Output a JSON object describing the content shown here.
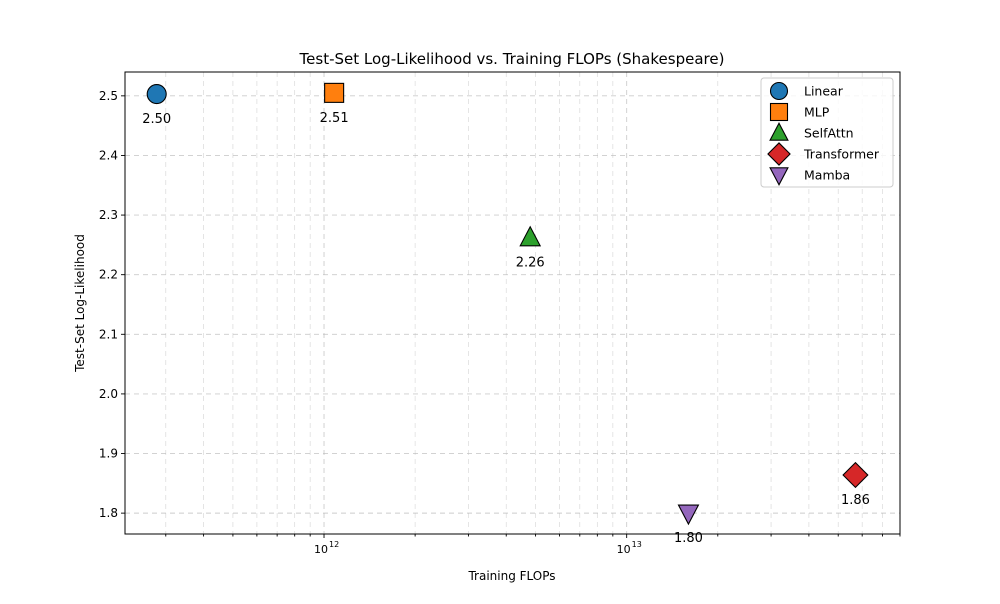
{
  "chart_data": {
    "type": "scatter",
    "title": "Test-Set Log-Likelihood vs. Training FLOPs (Shakespeare)",
    "xlabel": "Training FLOPs",
    "ylabel": "Test-Set Log-Likelihood",
    "x_scale": "log",
    "xlim": [
      220000000000.0,
      80000000000000.0
    ],
    "ylim": [
      1.765,
      2.54
    ],
    "x_major_ticks": [
      {
        "value": 1000000000000.0,
        "base": "10",
        "exp": "12"
      },
      {
        "value": 10000000000000.0,
        "base": "10",
        "exp": "13"
      }
    ],
    "y_ticks": [
      1.8,
      1.9,
      2.0,
      2.1,
      2.2,
      2.3,
      2.4,
      2.5
    ],
    "y_tick_labels": [
      "1.8",
      "1.9",
      "2.0",
      "2.1",
      "2.2",
      "2.3",
      "2.4",
      "2.5"
    ],
    "grid": true,
    "legend_position": "top-right",
    "series": [
      {
        "name": "Linear",
        "marker": "circle",
        "color": "#1f77b4",
        "x": 280000000000.0,
        "y": 2.503,
        "label": "2.50"
      },
      {
        "name": "MLP",
        "marker": "square",
        "color": "#ff7f0e",
        "x": 1080000000000.0,
        "y": 2.505,
        "label": "2.51"
      },
      {
        "name": "SelfAttn",
        "marker": "triangle-up",
        "color": "#2ca02c",
        "x": 4800000000000.0,
        "y": 2.262,
        "label": "2.26"
      },
      {
        "name": "Transformer",
        "marker": "diamond",
        "color": "#d62728",
        "x": 57000000000000.0,
        "y": 1.864,
        "label": "1.86"
      },
      {
        "name": "Mamba",
        "marker": "triangle-down",
        "color": "#9467bd",
        "x": 16000000000000.0,
        "y": 1.8,
        "label": "1.80"
      }
    ]
  }
}
